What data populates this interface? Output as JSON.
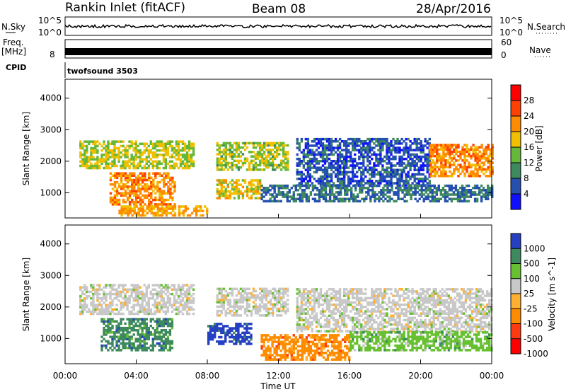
{
  "header": {
    "title": "Rankin Inlet (fitACF)",
    "beam": "Beam 08",
    "date": "28/Apr/2016"
  },
  "top_panels": {
    "nsky_label": "N.Sky",
    "nsearch_label": "N.Search",
    "nsky_ticks": [
      "10^5",
      "10^0"
    ],
    "nsky_right_ticks": [
      "10^5",
      "10^0"
    ],
    "freq_label": "Freq.",
    "freq_unit": "[MHz]",
    "freq_ticks": [
      "8"
    ],
    "nave_label": "Nave",
    "nave_ticks": [
      "60",
      "0"
    ],
    "cpid_label": "CPID",
    "cpid_value": "twofsound 3503"
  },
  "colors": {
    "power_scale": [
      "#1010ff",
      "#2550b0",
      "#3e8a5e",
      "#66b83a",
      "#f0c000",
      "#ff8c00",
      "#ff4000",
      "#ff0000"
    ],
    "velocity_scale": [
      "#ff0000",
      "#ff3a10",
      "#ff8c00",
      "#ffb030",
      "#c8c8c8",
      "#66c030",
      "#3e8a5e",
      "#2540c0"
    ]
  },
  "chart_data": [
    {
      "type": "heatmap",
      "name_ref": "power",
      "ylabel": "Slant Range [km]",
      "xlim": [
        0,
        24
      ],
      "ylim": [
        200,
        4600
      ],
      "x_ticks": [
        0,
        4,
        8,
        12,
        16,
        20,
        24
      ],
      "y_ticks": [
        1000,
        2000,
        3000,
        4000
      ],
      "colorbar": {
        "label": "Power [dB]",
        "ticks": [
          "4",
          "8",
          "12",
          "16",
          "20",
          "24",
          "28"
        ],
        "range": [
          0,
          32
        ]
      },
      "regions": [
        {
          "t0": 0.8,
          "t1": 7.2,
          "r0": 1750,
          "r1": 2600,
          "level": 16
        },
        {
          "t0": 8.5,
          "t1": 12.5,
          "r0": 1700,
          "r1": 2600,
          "level": 15
        },
        {
          "t0": 13.0,
          "t1": 20.5,
          "r0": 1200,
          "r1": 2700,
          "level": 6
        },
        {
          "t0": 20.5,
          "t1": 24.0,
          "r0": 1500,
          "r1": 2500,
          "level": 22
        },
        {
          "t0": 2.5,
          "t1": 6.2,
          "r0": 600,
          "r1": 1600,
          "level": 22
        },
        {
          "t0": 8.5,
          "t1": 11.0,
          "r0": 800,
          "r1": 1400,
          "level": 18
        },
        {
          "t0": 11.0,
          "t1": 24.0,
          "r0": 700,
          "r1": 1200,
          "level": 8
        },
        {
          "t0": 3.0,
          "t1": 8.0,
          "r0": 250,
          "r1": 600,
          "level": 20
        }
      ]
    },
    {
      "type": "heatmap",
      "name_ref": "velocity",
      "ylabel": "Slant Range [km]",
      "xlabel": "Time UT",
      "xlim": [
        0,
        24
      ],
      "ylim": [
        200,
        4600
      ],
      "x_tick_labels": [
        "00:00",
        "04:00",
        "08:00",
        "12:00",
        "16:00",
        "20:00",
        "00:00"
      ],
      "y_ticks": [
        1000,
        2000,
        3000,
        4000
      ],
      "colorbar": {
        "label": "Velocity [m s^-1]",
        "ticks": [
          "1000",
          "500",
          "100",
          "25",
          "-25",
          "-100",
          "-500",
          "-1000"
        ]
      },
      "regions": [
        {
          "t0": 0.8,
          "t1": 7.2,
          "r0": 1750,
          "r1": 2700,
          "level": 4
        },
        {
          "t0": 8.5,
          "t1": 12.5,
          "r0": 1700,
          "r1": 2600,
          "level": 4
        },
        {
          "t0": 13.0,
          "t1": 24.0,
          "r0": 1200,
          "r1": 2600,
          "level": 4
        },
        {
          "t0": 2.0,
          "t1": 6.0,
          "r0": 600,
          "r1": 1600,
          "level": 6
        },
        {
          "t0": 8.0,
          "t1": 10.5,
          "r0": 800,
          "r1": 1500,
          "level": 7
        },
        {
          "t0": 11.0,
          "t1": 16.0,
          "r0": 300,
          "r1": 1100,
          "level": 2
        },
        {
          "t0": 16.0,
          "t1": 24.0,
          "r0": 600,
          "r1": 1200,
          "level": 5
        }
      ]
    }
  ]
}
